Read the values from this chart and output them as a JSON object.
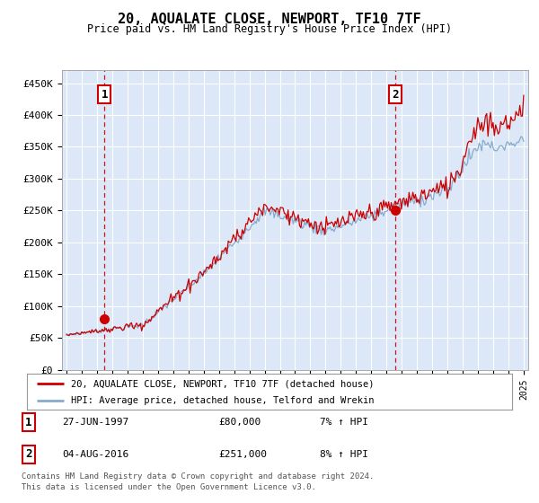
{
  "title": "20, AQUALATE CLOSE, NEWPORT, TF10 7TF",
  "subtitle": "Price paid vs. HM Land Registry's House Price Index (HPI)",
  "bg_color": "#dce8f7",
  "grid_color": "#ffffff",
  "ylim": [
    0,
    470000
  ],
  "yticks": [
    0,
    50000,
    100000,
    150000,
    200000,
    250000,
    300000,
    350000,
    400000,
    450000
  ],
  "ytick_labels": [
    "£0",
    "£50K",
    "£100K",
    "£150K",
    "£200K",
    "£250K",
    "£300K",
    "£350K",
    "£400K",
    "£450K"
  ],
  "xmin_year": 1995,
  "xmax_year": 2025,
  "xticks": [
    1995,
    1996,
    1997,
    1998,
    1999,
    2000,
    2001,
    2002,
    2003,
    2004,
    2005,
    2006,
    2007,
    2008,
    2009,
    2010,
    2011,
    2012,
    2013,
    2014,
    2015,
    2016,
    2017,
    2018,
    2019,
    2020,
    2021,
    2022,
    2023,
    2024,
    2025
  ],
  "line_color_red": "#cc0000",
  "line_color_blue": "#88aacc",
  "marker_color": "#cc0000",
  "sale1_x": 1997.49,
  "sale1_y": 80000,
  "sale2_x": 2016.59,
  "sale2_y": 251000,
  "legend_label_red": "20, AQUALATE CLOSE, NEWPORT, TF10 7TF (detached house)",
  "legend_label_blue": "HPI: Average price, detached house, Telford and Wrekin",
  "footer_line1": "Contains HM Land Registry data © Crown copyright and database right 2024.",
  "footer_line2": "This data is licensed under the Open Government Licence v3.0.",
  "table_row1": [
    "1",
    "27-JUN-1997",
    "£80,000",
    "7% ↑ HPI"
  ],
  "table_row2": [
    "2",
    "04-AUG-2016",
    "£251,000",
    "8% ↑ HPI"
  ]
}
